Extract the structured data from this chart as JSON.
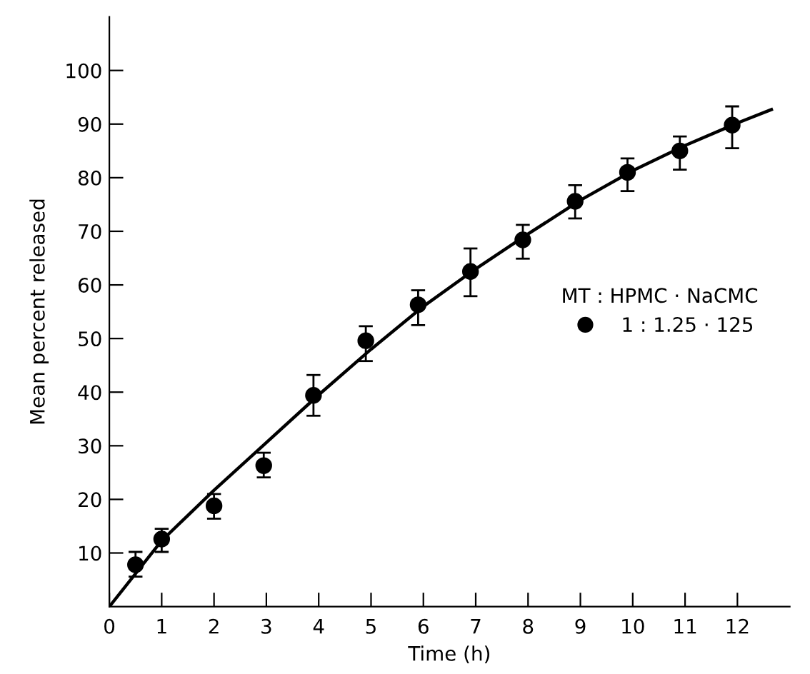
{
  "chart_data": {
    "type": "scatter",
    "xlabel": "Time (h)",
    "ylabel": "Mean percent released",
    "legend_title": "MT : HPMC · NaCMC",
    "legend": "center right",
    "xlim": [
      0,
      13
    ],
    "ylim": [
      0,
      110
    ],
    "xticks": [
      0,
      1,
      2,
      3,
      4,
      5,
      6,
      7,
      8,
      9,
      10,
      11,
      12
    ],
    "yticks": [
      10,
      20,
      30,
      40,
      50,
      60,
      70,
      80,
      90,
      100
    ],
    "grid": false,
    "series": [
      {
        "name": "1 : 1.25 · 125",
        "marker": "circle",
        "color": "#000000",
        "x": [
          0.5,
          1,
          2,
          2.95,
          3.9,
          4.9,
          5.9,
          6.9,
          7.9,
          8.9,
          9.9,
          10.9,
          11.9
        ],
        "values": [
          7.8,
          12.6,
          18.8,
          26.3,
          39.4,
          49.6,
          56.3,
          62.5,
          68.4,
          75.6,
          81,
          85,
          89.8
        ],
        "errors": [
          [
            5.6,
            10.2
          ],
          [
            10.2,
            14.5
          ],
          [
            16.4,
            21
          ],
          [
            24.1,
            28.7
          ],
          [
            35.6,
            43.2
          ],
          [
            45.8,
            52.3
          ],
          [
            52.5,
            59
          ],
          [
            57.9,
            66.8
          ],
          [
            64.9,
            71.2
          ],
          [
            72.4,
            78.6
          ],
          [
            77.5,
            83.6
          ],
          [
            81.5,
            87.7
          ],
          [
            85.5,
            93.3
          ]
        ]
      },
      {
        "type": "line",
        "marker": "none",
        "line_style": "solid",
        "color": "#000000",
        "x": [
          0,
          1,
          2,
          3,
          4,
          5,
          6,
          7,
          8,
          9,
          10,
          11,
          12,
          12.65
        ],
        "values": [
          0,
          12.3,
          21.7,
          30.6,
          39.5,
          48,
          56,
          63,
          69.5,
          75.8,
          81.3,
          86,
          90.2,
          92.7
        ]
      }
    ]
  }
}
